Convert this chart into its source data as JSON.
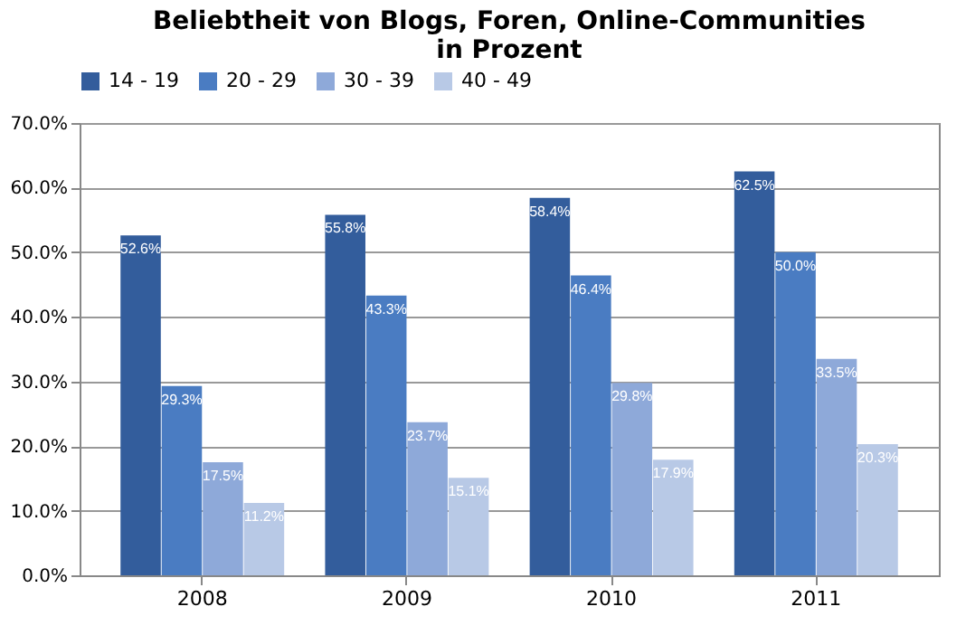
{
  "chart_data": {
    "type": "bar",
    "title": "Beliebtheit von Blogs, Foren, Online-Communities\nin Prozent",
    "categories": [
      "2008",
      "2009",
      "2010",
      "2011"
    ],
    "series": [
      {
        "name": "14 - 19",
        "color": "#335d9c",
        "values": [
          52.6,
          55.8,
          58.4,
          62.5
        ],
        "value_labels": [
          "52.6%",
          "55.8%",
          "58.4%",
          "62.5%"
        ]
      },
      {
        "name": "20 - 29",
        "color": "#4a7cc2",
        "values": [
          29.3,
          43.3,
          46.4,
          50.0
        ],
        "value_labels": [
          "29.3%",
          "43.3%",
          "46.4%",
          "50.0%"
        ]
      },
      {
        "name": "30 - 39",
        "color": "#8ea9d9",
        "values": [
          17.5,
          23.7,
          29.8,
          33.5
        ],
        "value_labels": [
          "17.5%",
          "23.7%",
          "29.8%",
          "33.5%"
        ]
      },
      {
        "name": "40 - 49",
        "color": "#b8c9e6",
        "values": [
          11.2,
          15.1,
          17.9,
          20.3
        ],
        "value_labels": [
          "11.2%",
          "15.1%",
          "17.9%",
          "20.3%"
        ]
      }
    ],
    "ylim": [
      0,
      70
    ],
    "yticks": [
      {
        "value": 0,
        "label": "0.0%"
      },
      {
        "value": 10,
        "label": "10.0%"
      },
      {
        "value": 20,
        "label": "20.0%"
      },
      {
        "value": 30,
        "label": "30.0%"
      },
      {
        "value": 40,
        "label": "40.0%"
      },
      {
        "value": 50,
        "label": "50.0%"
      },
      {
        "value": 60,
        "label": "60.0%"
      },
      {
        "value": 70,
        "label": "70.0%"
      }
    ],
    "grid": "y",
    "legend": "top"
  }
}
